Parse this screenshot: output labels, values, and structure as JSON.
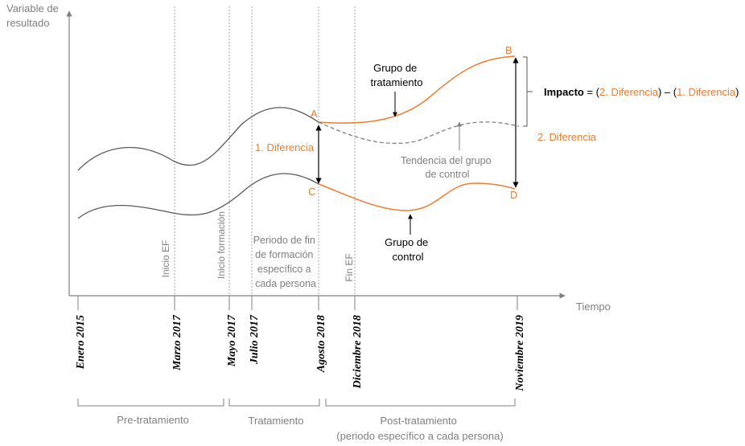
{
  "y_axis_label": [
    "Variable de",
    "resultado"
  ],
  "x_axis_label": "Tiempo",
  "dates": [
    "Enero 2015",
    "Marzo 2017",
    "Mayo 2017",
    "Julio 2017",
    "Agosto 2018",
    "Diciembre 2018",
    "Noviembre 2019"
  ],
  "vertical_markers": {
    "inicio_ef": "Inicio EF",
    "inicio_formacion": "Inicio formación",
    "fin_ef": "Fin EF",
    "periodo_fin": [
      "Periodo de fin",
      "de formación",
      "específico a",
      "cada persona"
    ]
  },
  "points": {
    "a": "A",
    "b": "B",
    "c": "C",
    "d": "D"
  },
  "labels": {
    "diferencia_1": "1. Diferencia",
    "diferencia_2": "2. Diferencia",
    "grupo_tratamiento": [
      "Grupo de",
      "tratamiento"
    ],
    "grupo_control": [
      "Grupo de",
      "control"
    ],
    "tendencia": [
      "Tendencia  del grupo",
      "de control"
    ]
  },
  "impact": {
    "label": "Impacto",
    "eq": " = (",
    "term_2": "2. Diferencia",
    "minus": ") – (",
    "term_1": "1. Diferencia",
    "close": ")"
  },
  "phases": {
    "pre": "Pre-tratamiento",
    "tratamiento": "Tratamiento",
    "post": [
      "Post-tratamiento",
      "(periodo específico a cada persona)"
    ]
  },
  "colors": {
    "orange": "#ed7d31",
    "gray": "#7f7f7f",
    "dark": "#595959",
    "black": "#000000"
  }
}
